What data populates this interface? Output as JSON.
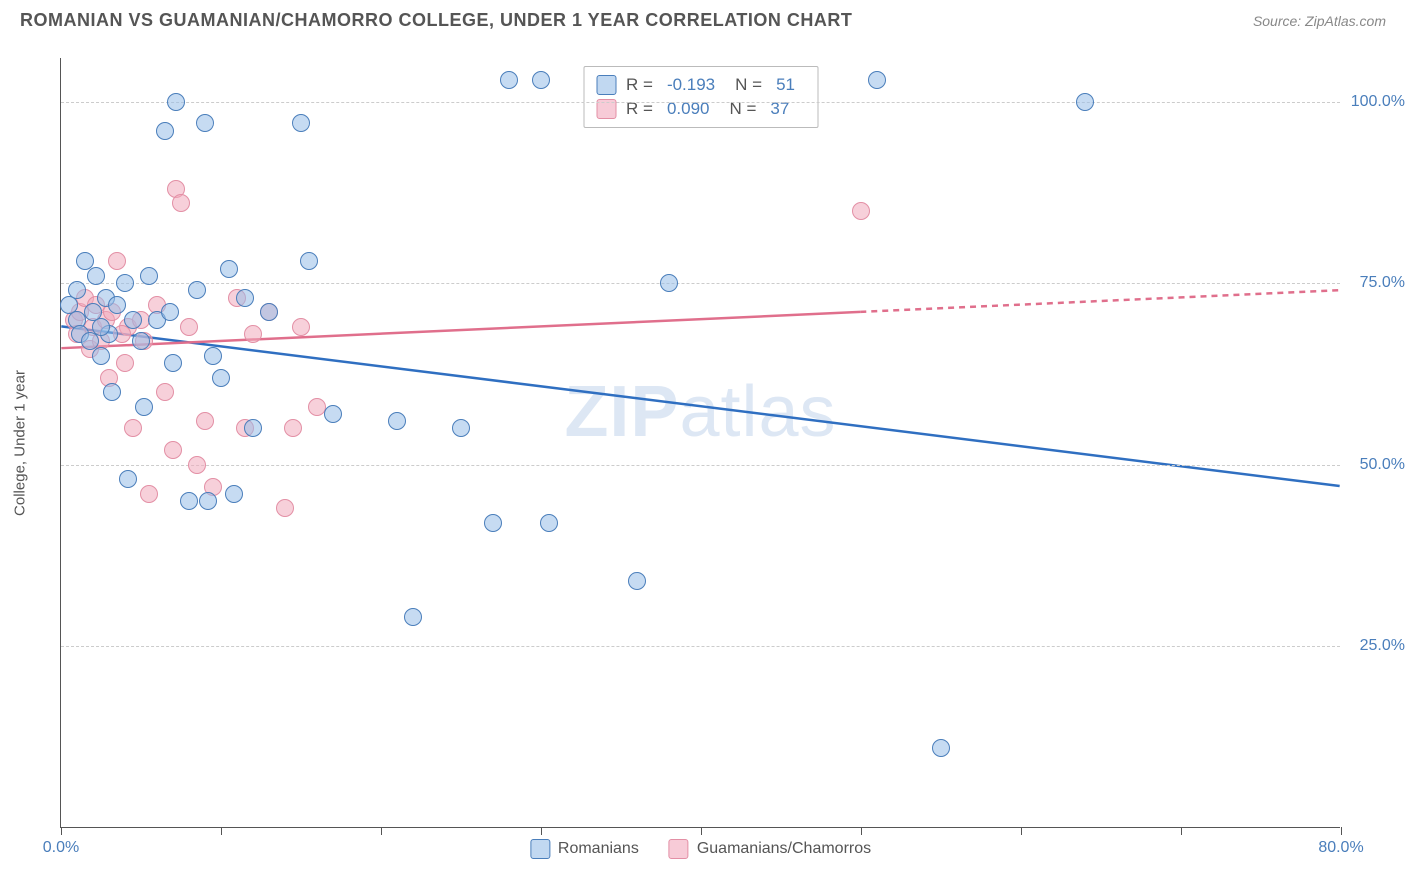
{
  "header": {
    "title": "ROMANIAN VS GUAMANIAN/CHAMORRO COLLEGE, UNDER 1 YEAR CORRELATION CHART",
    "source": "Source: ZipAtlas.com"
  },
  "chart": {
    "type": "scatter",
    "ylabel": "College, Under 1 year",
    "watermark": "ZIPatlas",
    "background_color": "#ffffff",
    "grid_color": "#cccccc",
    "axis_color": "#555555",
    "ytick_color": "#4a7ebb",
    "xtick_color": "#4a7ebb",
    "xlim": [
      0,
      80
    ],
    "ylim": [
      0,
      106
    ],
    "yticks": [
      25,
      50,
      75,
      100
    ],
    "ytick_labels": [
      "25.0%",
      "50.0%",
      "75.0%",
      "100.0%"
    ],
    "xticks": [
      0,
      10,
      20,
      30,
      40,
      50,
      60,
      70,
      80
    ],
    "xtick_labels": {
      "0": "0.0%",
      "80": "80.0%"
    },
    "series": {
      "romanians": {
        "label": "Romanians",
        "fill_color": "rgba(151, 190, 232, 0.55)",
        "stroke_color": "#4a7ebb",
        "line_color": "#2f6fc1",
        "r_value": "-0.193",
        "n_value": "51",
        "trend": {
          "x1": 0,
          "y1": 69,
          "x2": 80,
          "y2": 47
        },
        "points": [
          [
            0.5,
            72
          ],
          [
            1,
            70
          ],
          [
            1,
            74
          ],
          [
            1.2,
            68
          ],
          [
            1.5,
            78
          ],
          [
            1.8,
            67
          ],
          [
            2,
            71
          ],
          [
            2.2,
            76
          ],
          [
            2.5,
            65
          ],
          [
            2.8,
            73
          ],
          [
            3,
            68
          ],
          [
            3.2,
            60
          ],
          [
            3.5,
            72
          ],
          [
            4,
            75
          ],
          [
            4.2,
            48
          ],
          [
            5,
            67
          ],
          [
            5.2,
            58
          ],
          [
            5.5,
            76
          ],
          [
            6,
            70
          ],
          [
            6.5,
            96
          ],
          [
            7,
            64
          ],
          [
            7.2,
            100
          ],
          [
            8,
            45
          ],
          [
            8.5,
            74
          ],
          [
            9,
            97
          ],
          [
            9.2,
            45
          ],
          [
            9.5,
            65
          ],
          [
            10,
            62
          ],
          [
            10.5,
            77
          ],
          [
            10.8,
            46
          ],
          [
            11.5,
            73
          ],
          [
            12,
            55
          ],
          [
            13,
            71
          ],
          [
            15,
            97
          ],
          [
            15.5,
            78
          ],
          [
            17,
            57
          ],
          [
            21,
            56
          ],
          [
            22,
            29
          ],
          [
            25,
            55
          ],
          [
            27,
            42
          ],
          [
            28,
            103
          ],
          [
            30,
            103
          ],
          [
            30.5,
            42
          ],
          [
            36,
            34
          ],
          [
            38,
            75
          ],
          [
            51,
            103
          ],
          [
            55,
            11
          ],
          [
            64,
            100
          ],
          [
            2.5,
            69
          ],
          [
            4.5,
            70
          ],
          [
            6.8,
            71
          ]
        ]
      },
      "guamanians": {
        "label": "Guamanians/Chamorros",
        "fill_color": "rgba(241, 169, 188, 0.55)",
        "stroke_color": "#e38fa5",
        "line_color": "#e06f8c",
        "r_value": "0.090",
        "n_value": "37",
        "trend_solid": {
          "x1": 0,
          "y1": 66,
          "x2": 50,
          "y2": 71
        },
        "trend_dashed": {
          "x1": 50,
          "y1": 71,
          "x2": 80,
          "y2": 74
        },
        "points": [
          [
            0.8,
            70
          ],
          [
            1,
            68
          ],
          [
            1.2,
            71
          ],
          [
            1.5,
            73
          ],
          [
            1.8,
            66
          ],
          [
            2,
            69
          ],
          [
            2.2,
            72
          ],
          [
            2.5,
            67
          ],
          [
            2.8,
            70
          ],
          [
            3,
            62
          ],
          [
            3.2,
            71
          ],
          [
            3.5,
            78
          ],
          [
            4,
            64
          ],
          [
            4.2,
            69
          ],
          [
            4.5,
            55
          ],
          [
            5,
            70
          ],
          [
            5.2,
            67
          ],
          [
            5.5,
            46
          ],
          [
            6,
            72
          ],
          [
            6.5,
            60
          ],
          [
            7,
            52
          ],
          [
            7.2,
            88
          ],
          [
            7.5,
            86
          ],
          [
            8,
            69
          ],
          [
            8.5,
            50
          ],
          [
            9,
            56
          ],
          [
            9.5,
            47
          ],
          [
            11,
            73
          ],
          [
            11.5,
            55
          ],
          [
            12,
            68
          ],
          [
            13,
            71
          ],
          [
            14,
            44
          ],
          [
            14.5,
            55
          ],
          [
            15,
            69
          ],
          [
            16,
            58
          ],
          [
            50,
            85
          ],
          [
            3.8,
            68
          ]
        ]
      }
    }
  }
}
